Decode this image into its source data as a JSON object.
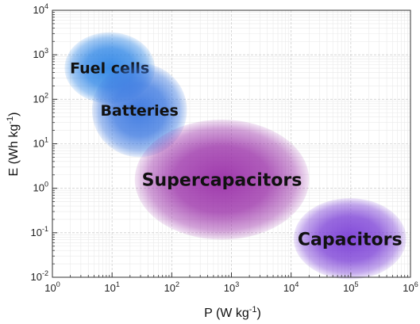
{
  "chart_data": {
    "type": "scatter",
    "title": "",
    "xlabel": {
      "base": "P (W kg",
      "exponent": "-1",
      "close": ")"
    },
    "ylabel": {
      "base": "E (Wh kg",
      "exponent": "-1",
      "close": ")"
    },
    "xscale": "log",
    "yscale": "log",
    "xlim": [
      1,
      1000000
    ],
    "ylim": [
      0.01,
      10000
    ],
    "grid": true,
    "x_ticks": [
      {
        "value": 1,
        "base": "10",
        "exp": "0"
      },
      {
        "value": 10,
        "base": "10",
        "exp": "1"
      },
      {
        "value": 100,
        "base": "10",
        "exp": "2"
      },
      {
        "value": 1000,
        "base": "10",
        "exp": "3"
      },
      {
        "value": 10000,
        "base": "10",
        "exp": "4"
      },
      {
        "value": 100000,
        "base": "10",
        "exp": "5"
      },
      {
        "value": 1000000,
        "base": "10",
        "exp": "6"
      }
    ],
    "y_ticks": [
      {
        "value": 0.01,
        "base": "10",
        "exp": "-2"
      },
      {
        "value": 0.1,
        "base": "10",
        "exp": "-1"
      },
      {
        "value": 1,
        "base": "10",
        "exp": "0"
      },
      {
        "value": 10,
        "base": "10",
        "exp": "1"
      },
      {
        "value": 100,
        "base": "10",
        "exp": "2"
      },
      {
        "value": 1000,
        "base": "10",
        "exp": "3"
      },
      {
        "value": 10000,
        "base": "10",
        "exp": "4"
      }
    ],
    "regions": [
      {
        "name": "Fuel cells",
        "x_range": [
          1.6,
          52
        ],
        "y_range": [
          80,
          3200
        ],
        "color": "#2f86e6",
        "label_size": 19
      },
      {
        "name": "Batteries",
        "x_range": [
          4.6,
          180
        ],
        "y_range": [
          5,
          650
        ],
        "color": "#3a77e0",
        "label_size": 19
      },
      {
        "name": "Supercapacitors",
        "x_range": [
          24,
          20000
        ],
        "y_range": [
          0.07,
          35
        ],
        "color": "#9a2fa8",
        "label_size": 22
      },
      {
        "name": "Capacitors",
        "x_range": [
          11000,
          850000
        ],
        "y_range": [
          0.009,
          0.6
        ],
        "color": "#7b3fd6",
        "label_size": 22
      }
    ]
  }
}
